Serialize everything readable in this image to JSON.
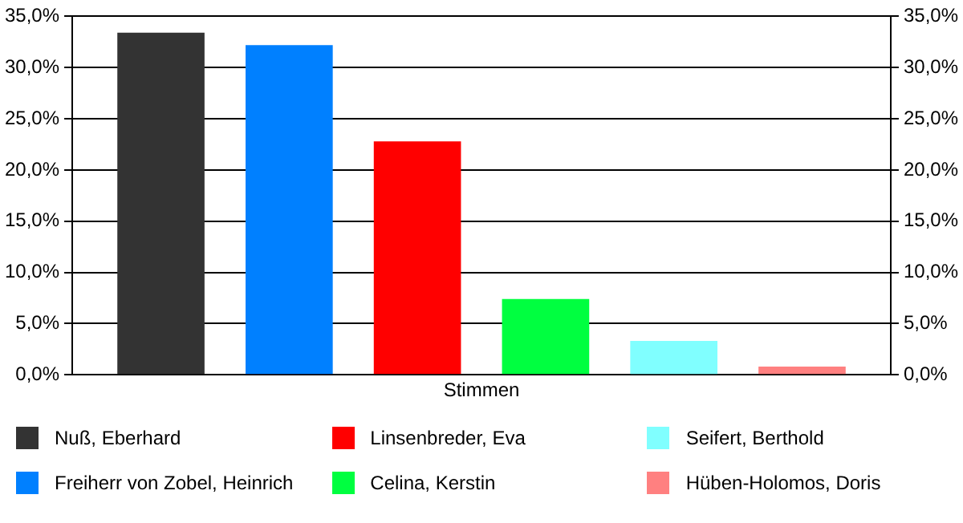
{
  "chart_data": {
    "type": "bar",
    "categories": [
      "Stimmen"
    ],
    "series": [
      {
        "name": "Nuß, Eberhard",
        "color": "#333333",
        "values": [
          33.4
        ]
      },
      {
        "name": "Freiherr von Zobel, Heinrich",
        "color": "#0080ff",
        "values": [
          32.2
        ]
      },
      {
        "name": "Linsenbreder, Eva",
        "color": "#ff0000",
        "values": [
          22.8
        ]
      },
      {
        "name": "Celina, Kerstin",
        "color": "#00ff40",
        "values": [
          7.4
        ]
      },
      {
        "name": "Seifert, Berthold",
        "color": "#80ffff",
        "values": [
          3.3
        ]
      },
      {
        "name": "Hüben-Holomos, Doris",
        "color": "#ff8080",
        "values": [
          0.8
        ]
      }
    ],
    "ylim": [
      0,
      35
    ],
    "yticks": [
      {
        "value": 0,
        "label": "0,0%"
      },
      {
        "value": 5,
        "label": "5,0%"
      },
      {
        "value": 10,
        "label": "10,0%"
      },
      {
        "value": 15,
        "label": "15,0%"
      },
      {
        "value": 20,
        "label": "20,0%"
      },
      {
        "value": 25,
        "label": "25,0%"
      },
      {
        "value": 30,
        "label": "30,0%"
      },
      {
        "value": 35,
        "label": "35,0%"
      }
    ],
    "grid": "y",
    "legend": "bottom"
  }
}
